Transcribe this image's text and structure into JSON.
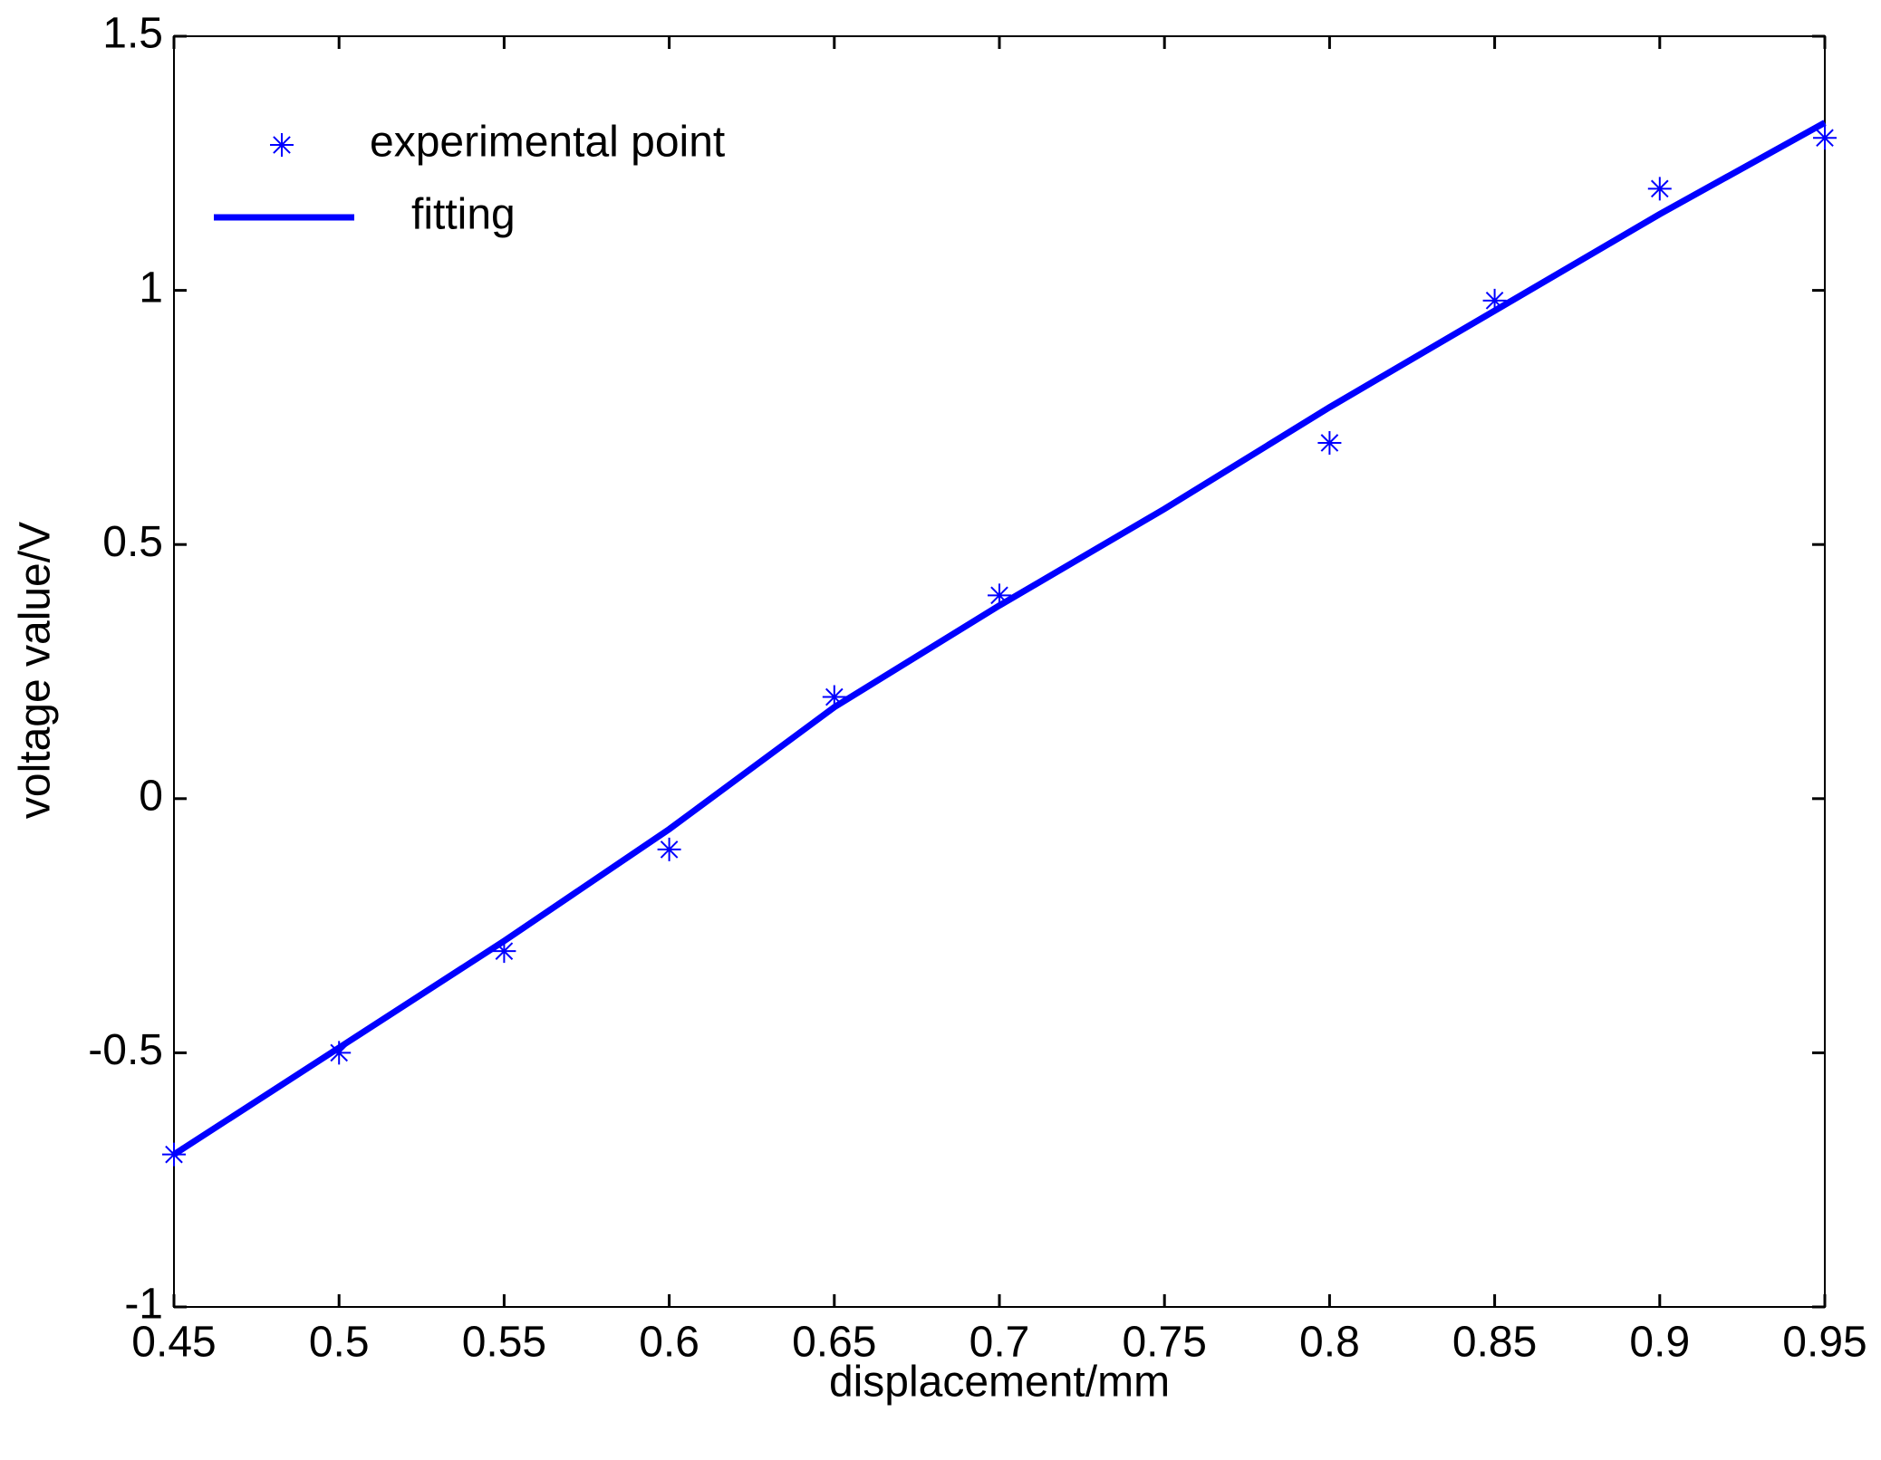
{
  "chart_data": {
    "type": "line",
    "xlabel": "displacement/mm",
    "ylabel": "voltage value/V",
    "xlim": [
      0.45,
      0.95
    ],
    "ylim": [
      -1,
      1.5
    ],
    "xticks": [
      0.45,
      0.5,
      0.55,
      0.6,
      0.65,
      0.7,
      0.75,
      0.8,
      0.85,
      0.9,
      0.95
    ],
    "yticks": [
      -1,
      -0.5,
      0,
      0.5,
      1,
      1.5
    ],
    "grid": false,
    "legend": "upper left",
    "series": [
      {
        "name": "experimental point",
        "color": "#0000ff",
        "style": "marker",
        "x": [
          0.45,
          0.5,
          0.55,
          0.6,
          0.65,
          0.7,
          0.8,
          0.85,
          0.9,
          0.95
        ],
        "values": [
          -0.7,
          -0.5,
          -0.3,
          -0.1,
          0.2,
          0.4,
          0.7,
          0.98,
          1.2,
          1.3
        ]
      },
      {
        "name": "fitting",
        "color": "#0000ff",
        "style": "line",
        "x": [
          0.45,
          0.5,
          0.55,
          0.6,
          0.65,
          0.7,
          0.75,
          0.8,
          0.85,
          0.9,
          0.95
        ],
        "values": [
          -0.7,
          -0.49,
          -0.28,
          -0.06,
          0.18,
          0.38,
          0.57,
          0.77,
          0.96,
          1.15,
          1.33
        ]
      }
    ]
  }
}
